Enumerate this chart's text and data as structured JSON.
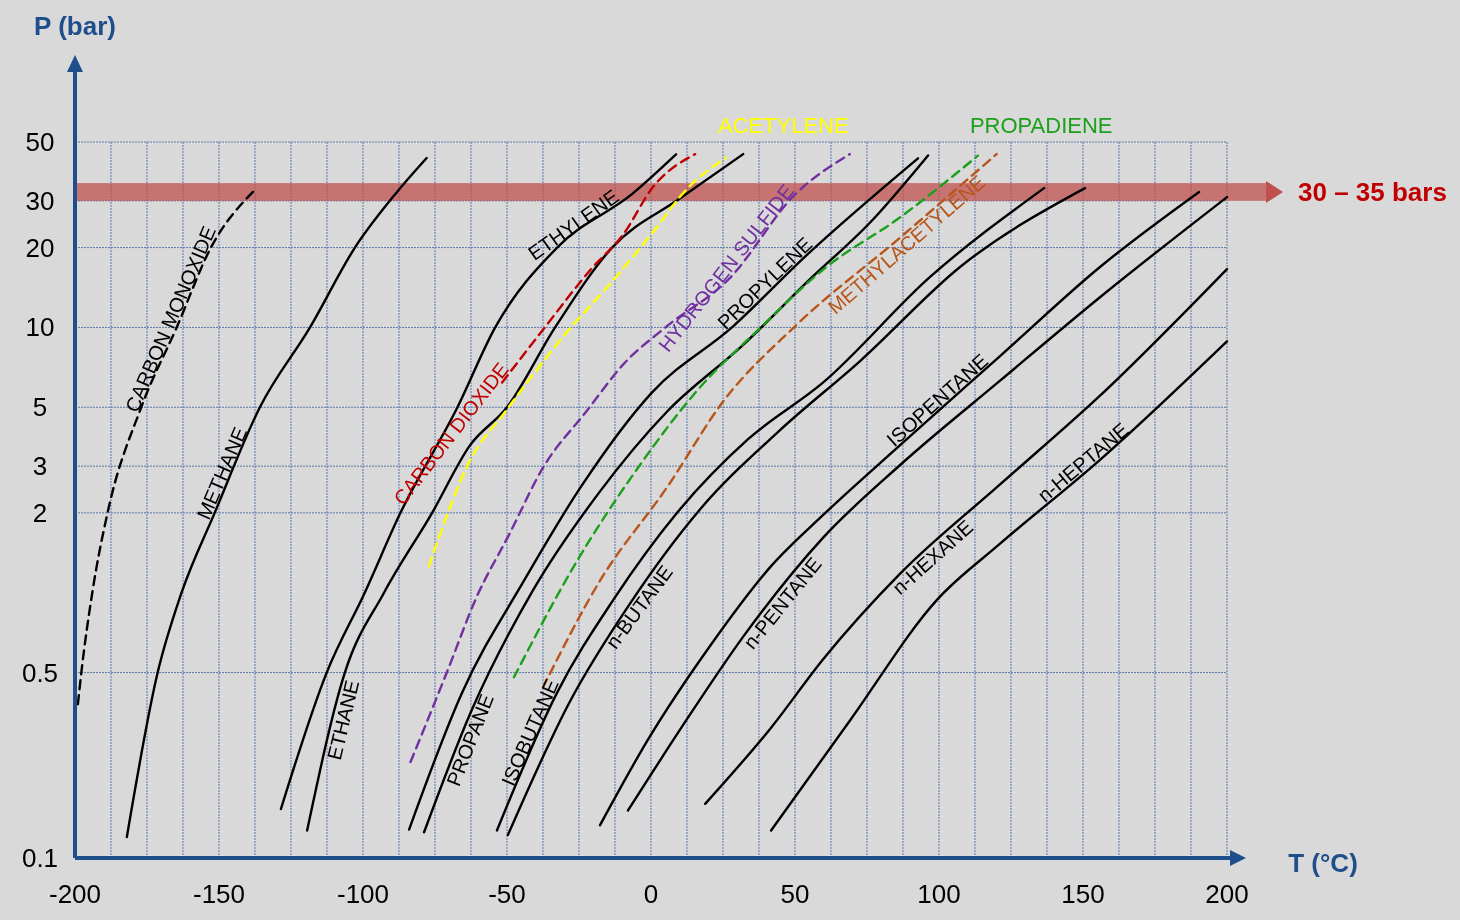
{
  "chart_data": {
    "type": "line",
    "xlabel": "T (°C)",
    "ylabel": "P (bar)",
    "log": "y",
    "grid": true,
    "line_style": "solid",
    "xlim": [
      -200,
      200
    ],
    "ylim": [
      0.1,
      50
    ],
    "xticks": [
      -200,
      {
        "value": -187.5,
        "label": null
      },
      {
        "value": -175,
        "label": null
      },
      {
        "value": -162.5,
        "label": null
      },
      -150,
      {
        "value": -137.5,
        "label": null
      },
      {
        "value": -125,
        "label": null
      },
      {
        "value": -112.5,
        "label": null
      },
      -100,
      {
        "value": -87.5,
        "label": null
      },
      {
        "value": -75,
        "label": null
      },
      {
        "value": -62.5,
        "label": null
      },
      -50,
      {
        "value": -37.5,
        "label": null
      },
      {
        "value": -25,
        "label": null
      },
      {
        "value": -12.5,
        "label": null
      },
      0,
      {
        "value": 12.5,
        "label": null
      },
      {
        "value": 25,
        "label": null
      },
      {
        "value": 37.5,
        "label": null
      },
      50,
      {
        "value": 62.5,
        "label": null
      },
      {
        "value": 75,
        "label": null
      },
      {
        "value": 87.5,
        "label": null
      },
      100,
      {
        "value": 112.5,
        "label": null
      },
      {
        "value": 125,
        "label": null
      },
      {
        "value": 137.5,
        "label": null
      },
      150,
      {
        "value": 162.5,
        "label": null
      },
      {
        "value": 175,
        "label": null
      },
      {
        "value": 187.5,
        "label": null
      },
      200
    ],
    "yticks": [
      0.1,
      0.5,
      2,
      3,
      5,
      10,
      20,
      30,
      50
    ],
    "bands": [
      {
        "axis": "y",
        "from": 30,
        "to": 35,
        "label": "30 – 35 bars",
        "color": "#c0504d"
      }
    ],
    "series": [
      {
        "name": "CARBON MONOXIDE",
        "color": "#000000",
        "line_style": "dashed",
        "x": [
          -199,
          -197.8,
          -194,
          -188.7,
          -177,
          -164.7,
          -152.8,
          -137.5
        ],
        "values": [
          0.38,
          0.5,
          1,
          2,
          5,
          10,
          20,
          33
        ]
      },
      {
        "name": "METHANE",
        "color": "#000000",
        "x": [
          -182,
          -171.3,
          -163,
          -151.5,
          -135.8,
          -118.4,
          -102.8,
          -88.6,
          -77.9
        ],
        "values": [
          0.12,
          0.5,
          1,
          2,
          5,
          10,
          20,
          32,
          43.5
        ]
      },
      {
        "name": "ETHYLENE",
        "color": "#000000",
        "x": [
          -128.5,
          -112.6,
          -99.4,
          -87,
          -67.2,
          -54.1,
          -32.6,
          -6.3,
          8.7
        ],
        "values": [
          0.153,
          0.5,
          1,
          2,
          5,
          10,
          20,
          32,
          44.9
        ]
      },
      {
        "name": "ETHANE",
        "color": "#000000",
        "x": [
          -119.4,
          -106.3,
          -92.7,
          -76,
          -62.8,
          -50,
          -33.3,
          -13.5,
          10,
          32
        ],
        "values": [
          0.127,
          0.5,
          1,
          2,
          3.6,
          5,
          10,
          20,
          30.6,
          45
        ]
      },
      {
        "name": "CARBON DIOXIDE",
        "color": "#c00000",
        "line_style": "dashed",
        "x": [
          -51.7,
          -37.5,
          -21,
          -9.4,
          0.3,
          15.3
        ],
        "values": [
          6.2,
          9.8,
          16.5,
          22.6,
          33.4,
          45
        ]
      },
      {
        "name": "ACETYLENE",
        "color": "#ffff00",
        "line_style": "dashed",
        "x": [
          -77.1,
          -62.5,
          -50.7,
          -29.2,
          -14.2,
          0.3,
          12.2,
          26
        ],
        "values": [
          1.26,
          3.2,
          4.8,
          9.6,
          14.6,
          22.6,
          33,
          43.6
        ]
      },
      {
        "name": "HYDROGEN SULFIDE",
        "color": "#7030a0",
        "line_style": "dashed",
        "x": [
          -83.5,
          -70.6,
          -60.8,
          -49.1,
          -37.5,
          -22.6,
          -9.4,
          5.5,
          27,
          50,
          69
        ],
        "values": [
          0.23,
          0.51,
          0.95,
          1.67,
          2.96,
          4.8,
          7.3,
          10.1,
          15.2,
          31.7,
          45
        ]
      },
      {
        "name": "PROPYLENE",
        "color": "#000000",
        "x": [
          -84,
          -65.6,
          -44.1,
          -24.3,
          0.3,
          28.5,
          53.5,
          92.7
        ],
        "values": [
          0.128,
          0.42,
          1.11,
          2.51,
          5.68,
          10.1,
          18.5,
          43.4
        ]
      },
      {
        "name": "PROPANE",
        "color": "#000000",
        "x": [
          -78.8,
          -62.5,
          -41,
          -17.7,
          5.6,
          31.9,
          55.2,
          76,
          96.2
        ],
        "values": [
          0.125,
          0.356,
          1.02,
          2.41,
          4.82,
          8.57,
          15.2,
          24.8,
          44.5
        ]
      },
      {
        "name": "PROPADIENE",
        "color": "#1aa01a",
        "line_style": "dashed",
        "x": [
          -47.6,
          -26,
          -4.5,
          15.3,
          38.5,
          59.7,
          86.5,
          113.5
        ],
        "values": [
          0.48,
          1.3,
          2.96,
          5.66,
          10.1,
          16.5,
          26,
          44.4
        ]
      },
      {
        "name": "METHYLACETYLENE",
        "color": "#b8561a",
        "line_style": "dashed",
        "x": [
          -37.5,
          -17.7,
          5.6,
          25.3,
          50,
          86.5,
          120
        ],
        "values": [
          0.44,
          1.11,
          2.5,
          5.3,
          10.1,
          21.8,
          45
        ]
      },
      {
        "name": "ISOBUTANE",
        "color": "#000000",
        "x": [
          -53.5,
          -32.6,
          -12.8,
          8.7,
          33.7,
          59.7,
          96.9,
          136.5
        ],
        "values": [
          0.127,
          0.42,
          0.95,
          1.98,
          3.79,
          6.19,
          15.5,
          33.5
        ]
      },
      {
        "name": "n-BUTANE",
        "color": "#000000",
        "x": [
          -49.7,
          -28.1,
          -7.3,
          17,
          44.8,
          72.6,
          107.3,
          150.7
        ],
        "values": [
          0.122,
          0.39,
          0.91,
          2.06,
          4.1,
          7.47,
          16.9,
          33.5
        ]
      },
      {
        "name": "ISOPENTANE",
        "color": "#000000",
        "x": [
          -17.7,
          -1,
          20.5,
          41.7,
          59.7,
          86.5,
          121.2,
          155.9,
          190.3
        ],
        "values": [
          0.133,
          0.28,
          0.63,
          1.26,
          1.96,
          3.6,
          7.8,
          16.9,
          32.4
        ]
      },
      {
        "name": "n-PENTANE",
        "color": "#000000",
        "x": [
          -8,
          12.2,
          31.9,
          59.7,
          86.5,
          121.2,
          155.9,
          200
        ],
        "values": [
          0.151,
          0.33,
          0.68,
          1.61,
          3.03,
          6.3,
          13,
          31
        ]
      },
      {
        "name": "n-HEXANE",
        "color": "#000000",
        "x": [
          18.8,
          41.7,
          59.7,
          86.5,
          121.2,
          155.9,
          200
        ],
        "values": [
          0.16,
          0.31,
          0.56,
          1.18,
          2.56,
          5.53,
          16.6
        ]
      },
      {
        "name": "n-HEPTANE",
        "color": "#000000",
        "x": [
          41.7,
          69.1,
          99.3,
          121.2,
          155.9,
          200
        ],
        "values": [
          0.127,
          0.33,
          0.94,
          1.53,
          3.17,
          8.87
        ]
      }
    ]
  }
}
